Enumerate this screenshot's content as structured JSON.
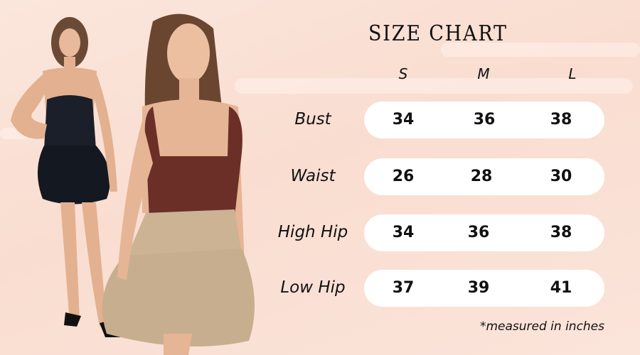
{
  "title": "SIZE CHART",
  "sizes": [
    "S",
    "M",
    "L"
  ],
  "rows": [
    {
      "label": "Bust",
      "values": [
        "34",
        "36",
        "38"
      ]
    },
    {
      "label": "Waist",
      "values": [
        "26",
        "28",
        "30"
      ]
    },
    {
      "label": "High Hip",
      "values": [
        "34",
        "36",
        "38"
      ]
    },
    {
      "label": "Low Hip",
      "values": [
        "37",
        "39",
        "41"
      ]
    }
  ],
  "note": "*measured in inches",
  "colors": {
    "background": "#fbe3d9",
    "pill": "#ffffff",
    "text": "#111111"
  }
}
